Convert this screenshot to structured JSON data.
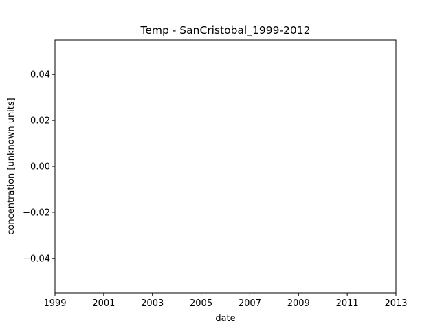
{
  "chart_data": {
    "type": "line",
    "title": "Temp - SanCristobal_1999-2012",
    "xlabel": "date",
    "ylabel": "concentration [unknown units]",
    "xlim": [
      1999,
      2013
    ],
    "ylim": [
      -0.055,
      0.055
    ],
    "xticks": [
      {
        "value": 1999,
        "label": "1999"
      },
      {
        "value": 2001,
        "label": "2001"
      },
      {
        "value": 2003,
        "label": "2003"
      },
      {
        "value": 2005,
        "label": "2005"
      },
      {
        "value": 2007,
        "label": "2007"
      },
      {
        "value": 2009,
        "label": "2009"
      },
      {
        "value": 2011,
        "label": "2011"
      },
      {
        "value": 2013,
        "label": "2013"
      }
    ],
    "yticks": [
      {
        "value": 0.04,
        "label": "0.04"
      },
      {
        "value": 0.02,
        "label": "0.02"
      },
      {
        "value": 0.0,
        "label": "0.00"
      },
      {
        "value": -0.02,
        "label": "−0.02"
      },
      {
        "value": -0.04,
        "label": "−0.04"
      }
    ],
    "series": [
      {
        "x": [],
        "y": []
      }
    ],
    "grid": false,
    "legend": "none",
    "colors": {
      "axes": "#000000",
      "background": "#ffffff"
    }
  }
}
